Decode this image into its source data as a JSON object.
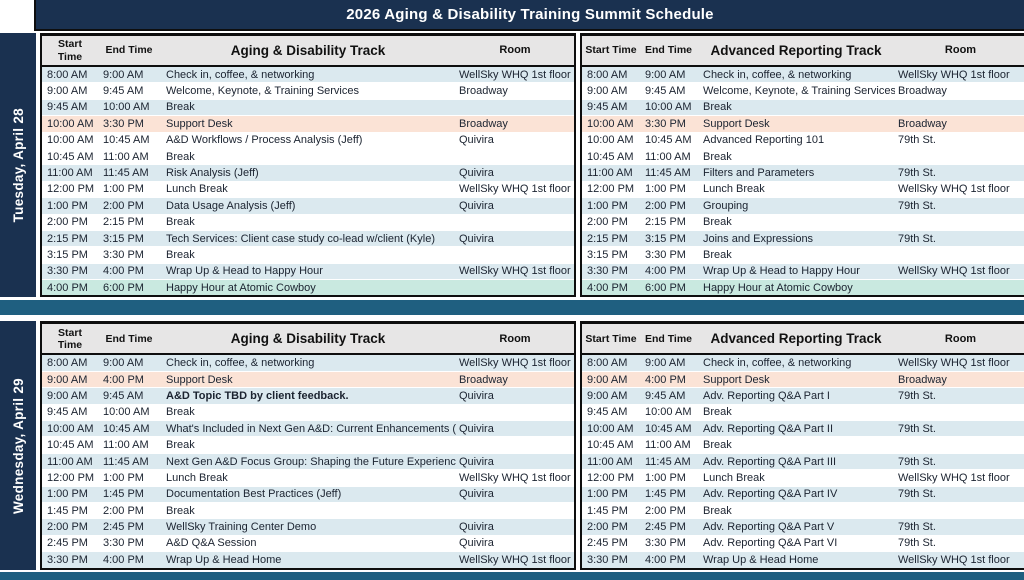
{
  "title": "2026 Aging & Disability Training Summit Schedule",
  "colors": {
    "navy": "#1a3150",
    "teal": "#1f5f80",
    "header_bg": "#e7e6e6",
    "row_blue": "#dbe9ef",
    "row_peach": "#fbe3d6",
    "row_mint": "#c9e9e0",
    "text": "#1b2330"
  },
  "days": [
    {
      "label": "Tuesday, April 28",
      "tracks": [
        {
          "headers": {
            "start": "Start\nTime",
            "end": "End Time",
            "track": "Aging & Disability Track",
            "room": "Room"
          },
          "rows": [
            {
              "start": "8:00 AM",
              "end": "9:00 AM",
              "session": "Check in, coffee, & networking",
              "room": "WellSky WHQ 1st floor",
              "bg": "blue"
            },
            {
              "start": "9:00 AM",
              "end": "9:45 AM",
              "session": "Welcome, Keynote, & Training Services",
              "room": "Broadway",
              "bg": "white"
            },
            {
              "start": "9:45 AM",
              "end": "10:00 AM",
              "session": "Break",
              "room": "",
              "bg": "blue"
            },
            {
              "start": "10:00 AM",
              "end": "3:30 PM",
              "session": "Support Desk",
              "room": "Broadway",
              "bg": "peach"
            },
            {
              "start": "10:00 AM",
              "end": "10:45 AM",
              "session": "A&D Workflows / Process Analysis (Jeff)",
              "room": "Quivira",
              "bg": "white"
            },
            {
              "start": "10:45 AM",
              "end": "11:00 AM",
              "session": "Break",
              "room": "",
              "bg": "white"
            },
            {
              "start": "11:00 AM",
              "end": "11:45 AM",
              "session": "Risk Analysis (Jeff)",
              "room": "Quivira",
              "bg": "blue"
            },
            {
              "start": "12:00 PM",
              "end": "1:00 PM",
              "session": "Lunch Break",
              "room": "WellSky WHQ 1st floor",
              "bg": "white"
            },
            {
              "start": "1:00 PM",
              "end": "2:00 PM",
              "session": "Data Usage Analysis (Jeff)",
              "room": "Quivira",
              "bg": "blue"
            },
            {
              "start": "2:00 PM",
              "end": "2:15 PM",
              "session": "Break",
              "room": "",
              "bg": "white"
            },
            {
              "start": "2:15 PM",
              "end": "3:15 PM",
              "session": "Tech Services: Client case study co-lead w/client (Kyle)",
              "room": "Quivira",
              "bg": "blue"
            },
            {
              "start": "3:15 PM",
              "end": "3:30 PM",
              "session": "Break",
              "room": "",
              "bg": "white"
            },
            {
              "start": "3:30 PM",
              "end": "4:00 PM",
              "session": "Wrap Up & Head to Happy Hour",
              "room": "WellSky WHQ 1st floor",
              "bg": "blue"
            },
            {
              "start": "4:00 PM",
              "end": "6:00 PM",
              "session": "Happy Hour at Atomic Cowboy",
              "room": "",
              "bg": "mint"
            }
          ]
        },
        {
          "headers": {
            "start": "Start Time",
            "end": "End Time",
            "track": "Advanced Reporting Track",
            "room": "Room"
          },
          "rows": [
            {
              "start": "8:00 AM",
              "end": "9:00 AM",
              "session": "Check in, coffee, & networking",
              "room": "WellSky WHQ 1st floor",
              "bg": "blue"
            },
            {
              "start": "9:00 AM",
              "end": "9:45 AM",
              "session": "Welcome, Keynote, & Training Services",
              "room": "Broadway",
              "bg": "white"
            },
            {
              "start": "9:45 AM",
              "end": "10:00 AM",
              "session": "Break",
              "room": "",
              "bg": "blue"
            },
            {
              "start": "10:00 AM",
              "end": "3:30 PM",
              "session": "Support Desk",
              "room": "Broadway",
              "bg": "peach"
            },
            {
              "start": "10:00 AM",
              "end": "10:45 AM",
              "session": "Advanced Reporting 101",
              "room": "79th St.",
              "bg": "white"
            },
            {
              "start": "10:45 AM",
              "end": "11:00 AM",
              "session": "Break",
              "room": "",
              "bg": "white"
            },
            {
              "start": "11:00 AM",
              "end": "11:45 AM",
              "session": "Filters and Parameters",
              "room": "79th St.",
              "bg": "blue"
            },
            {
              "start": "12:00 PM",
              "end": "1:00 PM",
              "session": "Lunch Break",
              "room": "WellSky WHQ 1st floor",
              "bg": "white"
            },
            {
              "start": "1:00 PM",
              "end": "2:00 PM",
              "session": "Grouping",
              "room": "79th St.",
              "bg": "blue"
            },
            {
              "start": "2:00 PM",
              "end": "2:15 PM",
              "session": "Break",
              "room": "",
              "bg": "white"
            },
            {
              "start": "2:15 PM",
              "end": "3:15 PM",
              "session": "Joins and Expressions",
              "room": "79th St.",
              "bg": "blue"
            },
            {
              "start": "3:15 PM",
              "end": "3:30 PM",
              "session": "Break",
              "room": "",
              "bg": "white"
            },
            {
              "start": "3:30 PM",
              "end": "4:00 PM",
              "session": "Wrap Up & Head to Happy Hour",
              "room": "WellSky WHQ 1st floor",
              "bg": "blue"
            },
            {
              "start": "4:00 PM",
              "end": "6:00 PM",
              "session": "Happy Hour at Atomic Cowboy",
              "room": "",
              "bg": "mint"
            }
          ]
        }
      ]
    },
    {
      "label": "Wednesday, April 29",
      "tracks": [
        {
          "headers": {
            "start": "Start\nTime",
            "end": "End Time",
            "track": "Aging & Disability Track",
            "room": "Room"
          },
          "rows": [
            {
              "start": "8:00 AM",
              "end": "9:00 AM",
              "session": "Check in, coffee, & networking",
              "room": "WellSky WHQ 1st floor",
              "bg": "blue"
            },
            {
              "start": "9:00 AM",
              "end": "4:00 PM",
              "session": "Support Desk",
              "room": "Broadway",
              "bg": "peach"
            },
            {
              "start": "9:00 AM",
              "end": "9:45 AM",
              "session": "A&D Topic TBD by client feedback.",
              "room": "Quivira",
              "bg": "blue",
              "bold": true
            },
            {
              "start": "9:45 AM",
              "end": "10:00 AM",
              "session": "Break",
              "room": "",
              "bg": "white"
            },
            {
              "start": "10:00 AM",
              "end": "10:45 AM",
              "session": "What's Included in Next Gen A&D: Current Enhancements (",
              "room": "Quivira",
              "bg": "blue"
            },
            {
              "start": "10:45 AM",
              "end": "11:00 AM",
              "session": "Break",
              "room": "",
              "bg": "white"
            },
            {
              "start": "11:00 AM",
              "end": "11:45 AM",
              "session": "Next Gen A&D Focus Group: Shaping the Future Experience",
              "room": "Quivira",
              "bg": "blue"
            },
            {
              "start": "12:00 PM",
              "end": "1:00 PM",
              "session": "Lunch Break",
              "room": "WellSky WHQ 1st floor",
              "bg": "white"
            },
            {
              "start": "1:00 PM",
              "end": "1:45 PM",
              "session": "Documentation Best Practices (Jeff)",
              "room": "Quivira",
              "bg": "blue"
            },
            {
              "start": "1:45 PM",
              "end": "2:00 PM",
              "session": "Break",
              "room": "",
              "bg": "white"
            },
            {
              "start": "2:00 PM",
              "end": "2:45 PM",
              "session": "WellSky Training Center Demo",
              "room": "Quivira",
              "bg": "blue"
            },
            {
              "start": "2:45 PM",
              "end": "3:30 PM",
              "session": "A&D Q&A Session",
              "room": "Quivira",
              "bg": "white"
            },
            {
              "start": "3:30 PM",
              "end": "4:00 PM",
              "session": "Wrap Up & Head Home",
              "room": "WellSky WHQ 1st floor",
              "bg": "blue"
            }
          ]
        },
        {
          "headers": {
            "start": "Start Time",
            "end": "End Time",
            "track": "Advanced Reporting Track",
            "room": "Room"
          },
          "rows": [
            {
              "start": "8:00 AM",
              "end": "9:00 AM",
              "session": "Check in, coffee, & networking",
              "room": "WellSky WHQ 1st floor",
              "bg": "blue"
            },
            {
              "start": "9:00 AM",
              "end": "4:00 PM",
              "session": "Support Desk",
              "room": "Broadway",
              "bg": "peach"
            },
            {
              "start": "9:00 AM",
              "end": "9:45 AM",
              "session": "Adv. Reporting Q&A Part I",
              "room": "79th St.",
              "bg": "blue"
            },
            {
              "start": "9:45 AM",
              "end": "10:00 AM",
              "session": "Break",
              "room": "",
              "bg": "white"
            },
            {
              "start": "10:00 AM",
              "end": "10:45 AM",
              "session": "Adv. Reporting Q&A Part II",
              "room": "79th St.",
              "bg": "blue"
            },
            {
              "start": "10:45 AM",
              "end": "11:00 AM",
              "session": "Break",
              "room": "",
              "bg": "white"
            },
            {
              "start": "11:00 AM",
              "end": "11:45 AM",
              "session": "Adv. Reporting Q&A Part III",
              "room": "79th St.",
              "bg": "blue"
            },
            {
              "start": "12:00 PM",
              "end": "1:00 PM",
              "session": "Lunch Break",
              "room": "WellSky WHQ 1st floor",
              "bg": "white"
            },
            {
              "start": "1:00 PM",
              "end": "1:45 PM",
              "session": "Adv. Reporting Q&A Part IV",
              "room": "79th St.",
              "bg": "blue"
            },
            {
              "start": "1:45 PM",
              "end": "2:00 PM",
              "session": "Break",
              "room": "",
              "bg": "white"
            },
            {
              "start": "2:00 PM",
              "end": "2:45 PM",
              "session": "Adv. Reporting Q&A Part V",
              "room": "79th St.",
              "bg": "blue"
            },
            {
              "start": "2:45 PM",
              "end": "3:30 PM",
              "session": "Adv. Reporting Q&A Part VI",
              "room": "79th St.",
              "bg": "white"
            },
            {
              "start": "3:30 PM",
              "end": "4:00 PM",
              "session": "Wrap Up & Head Home",
              "room": "WellSky WHQ 1st floor",
              "bg": "blue"
            }
          ]
        }
      ]
    }
  ]
}
